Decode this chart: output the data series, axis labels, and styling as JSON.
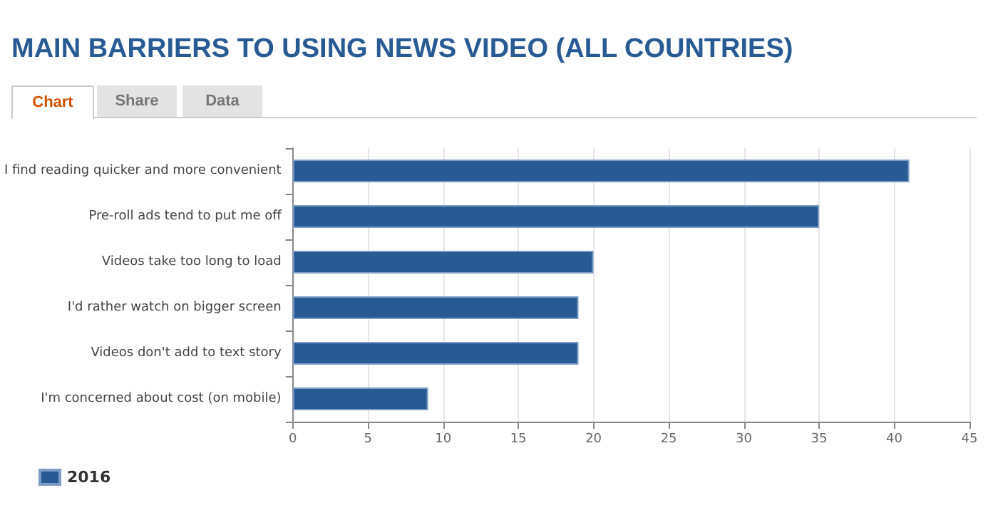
{
  "chart_data": {
    "type": "bar",
    "title": "MAIN BARRIERS TO USING NEWS VIDEO (ALL COUNTRIES)",
    "annotations": [
      "Chart",
      "Share",
      "Data"
    ],
    "orientation": "horizontal",
    "categories": [
      "I find reading quicker and more convenient",
      "Pre-roll ads tend to put me off",
      "Videos take too long to load",
      "I'd rather watch on bigger screen",
      "Videos don't add to text story",
      "I'm concerned about cost (on mobile)"
    ],
    "series": [
      {
        "name": "2016",
        "color": "#285b94",
        "values": [
          41,
          35,
          20,
          19,
          19,
          9
        ]
      }
    ],
    "xlim": [
      0,
      45
    ],
    "xticks": [
      0,
      5,
      10,
      15,
      20,
      25,
      30,
      35,
      40,
      45
    ],
    "grid": "x",
    "legend": "bottom left"
  }
}
